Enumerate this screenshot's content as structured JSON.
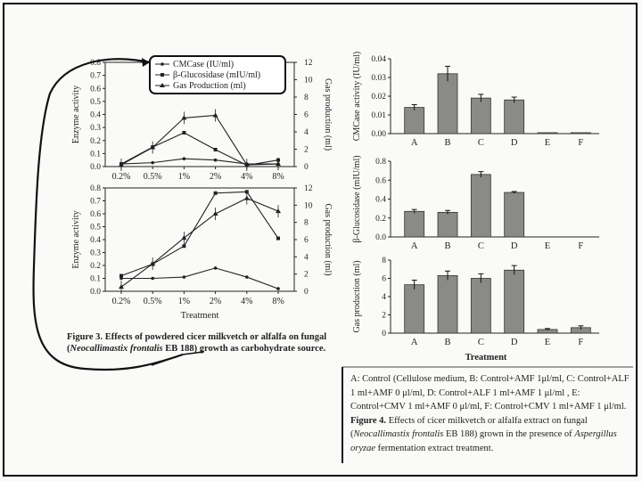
{
  "figure3": {
    "legend": [
      "CMCase (IU/ml)",
      "β-Glucosidase (mIU/ml)",
      "Gas Production (ml)"
    ],
    "caption_label": "Figure 3.",
    "caption_text": " Effects of powdered cicer milkvetch or alfalfa on fungal (",
    "caption_species": "Neocallimastix frontalis",
    "caption_tail": " EB 188) growth as carbohydrate source.",
    "xlabel": "Treatment",
    "panels": [
      {
        "ylabel_left": "Enzyme activity",
        "ylabel_right": "Gas production (ml)",
        "yticks_left": [
          "0.0",
          "0.1",
          "0.2",
          "0.3",
          "0.4",
          "0.5",
          "0.6",
          "0.7",
          "0.8"
        ],
        "yticks_right": [
          "0",
          "2",
          "4",
          "6",
          "8",
          "10",
          "12"
        ],
        "categories": [
          "0.2%",
          "0.5%",
          "1%",
          "2%",
          "4%",
          "8%"
        ]
      },
      {
        "ylabel_left": "Enzyme activity",
        "ylabel_right": "Gas production (ml)",
        "yticks_left": [
          "0.0",
          "0.1",
          "0.2",
          "0.3",
          "0.4",
          "0.5",
          "0.6",
          "0.7",
          "0.8"
        ],
        "yticks_right": [
          "0",
          "2",
          "4",
          "6",
          "8",
          "10",
          "12"
        ],
        "categories": [
          "0.2%",
          "0.5%",
          "1%",
          "2%",
          "4%",
          "8%"
        ]
      }
    ]
  },
  "figure4": {
    "xlabel": "Treatment",
    "caption_legend": "A: Control (Cellulose medium, B: Control+AMF 1μl/ml, C: Control+ALF 1 ml+AMF 0 μl/ml, D: Control+ALF 1 ml+AMF 1 μl/ml , E: Control+CMV 1 ml+AMF 0 μl/ml, F: Control+CMV 1 ml+AMF 1 μl/ml.",
    "caption_label": "Figure 4.",
    "caption_text": " Effects of cicer milkvetch or alfalfa extract on fungal (",
    "caption_species": "Neocallimastix frontalis",
    "caption_mid": " EB 188) grown in the presence of ",
    "caption_species2": "Aspergillus oryzae",
    "caption_tail": " fermentation extract treatment."
  },
  "chart_data": [
    {
      "type": "line",
      "title": "",
      "x": [
        "0.2%",
        "0.5%",
        "1%",
        "2%",
        "4%",
        "8%"
      ],
      "ylabel": "Enzyme activity",
      "y2label": "Gas production (ml)",
      "ylim": [
        0,
        0.8
      ],
      "y2lim": [
        0,
        12
      ],
      "series": [
        {
          "name": "CMCase (IU/ml)",
          "axis": "left",
          "values": [
            0.02,
            0.03,
            0.06,
            0.05,
            0.02,
            0.02
          ]
        },
        {
          "name": "β-Glucosidase (mIU/ml)",
          "axis": "left",
          "values": [
            0.02,
            0.15,
            0.26,
            0.13,
            0.01,
            0.05
          ]
        },
        {
          "name": "Gas Production (ml)",
          "axis": "right",
          "values": [
            0.2,
            2.2,
            5.6,
            5.9,
            0.2,
            0.3
          ]
        }
      ]
    },
    {
      "type": "line",
      "title": "",
      "x": [
        "0.2%",
        "0.5%",
        "1%",
        "2%",
        "4%",
        "8%"
      ],
      "xlabel": "Treatment",
      "ylabel": "Enzyme activity",
      "y2label": "Gas production (ml)",
      "ylim": [
        0,
        0.8
      ],
      "y2lim": [
        0,
        12
      ],
      "series": [
        {
          "name": "CMCase (IU/ml)",
          "axis": "left",
          "values": [
            0.1,
            0.1,
            0.11,
            0.18,
            0.11,
            0.02
          ]
        },
        {
          "name": "β-Glucosidase (mIU/ml)",
          "axis": "left",
          "values": [
            0.12,
            0.21,
            0.35,
            0.76,
            0.77,
            0.41
          ]
        },
        {
          "name": "Gas Production (ml)",
          "axis": "right",
          "values": [
            0.5,
            3.2,
            6.2,
            9.0,
            10.8,
            9.3
          ]
        }
      ]
    },
    {
      "type": "bar",
      "categories": [
        "A",
        "B",
        "C",
        "D",
        "E",
        "F"
      ],
      "ylabel": "CMCase activity (IU/ml)",
      "yticks": [
        "0.00",
        "0.01",
        "0.02",
        "0.03",
        "0.04"
      ],
      "ylim": [
        0,
        0.04
      ],
      "values": [
        0.014,
        0.032,
        0.019,
        0.018,
        0.0005,
        0.0005
      ],
      "errors": [
        0.0015,
        0.004,
        0.002,
        0.0015,
        0,
        0
      ]
    },
    {
      "type": "bar",
      "categories": [
        "A",
        "B",
        "C",
        "D",
        "E",
        "F"
      ],
      "ylabel": "β-Glucosidase (mIU/ml)",
      "yticks": [
        "0.0",
        "0.2",
        "0.4",
        "0.6",
        "0.8"
      ],
      "ylim": [
        0,
        0.8
      ],
      "values": [
        0.27,
        0.26,
        0.66,
        0.47,
        0,
        0
      ],
      "errors": [
        0.02,
        0.02,
        0.03,
        0.01,
        0,
        0
      ]
    },
    {
      "type": "bar",
      "categories": [
        "A",
        "B",
        "C",
        "D",
        "E",
        "F"
      ],
      "xlabel": "Treatment",
      "ylabel": "Gas production (ml)",
      "yticks": [
        "0",
        "2",
        "4",
        "6",
        "8"
      ],
      "ylim": [
        0,
        8
      ],
      "values": [
        5.3,
        6.3,
        6.0,
        6.9,
        0.4,
        0.6
      ],
      "errors": [
        0.5,
        0.5,
        0.5,
        0.5,
        0.1,
        0.2
      ]
    }
  ]
}
